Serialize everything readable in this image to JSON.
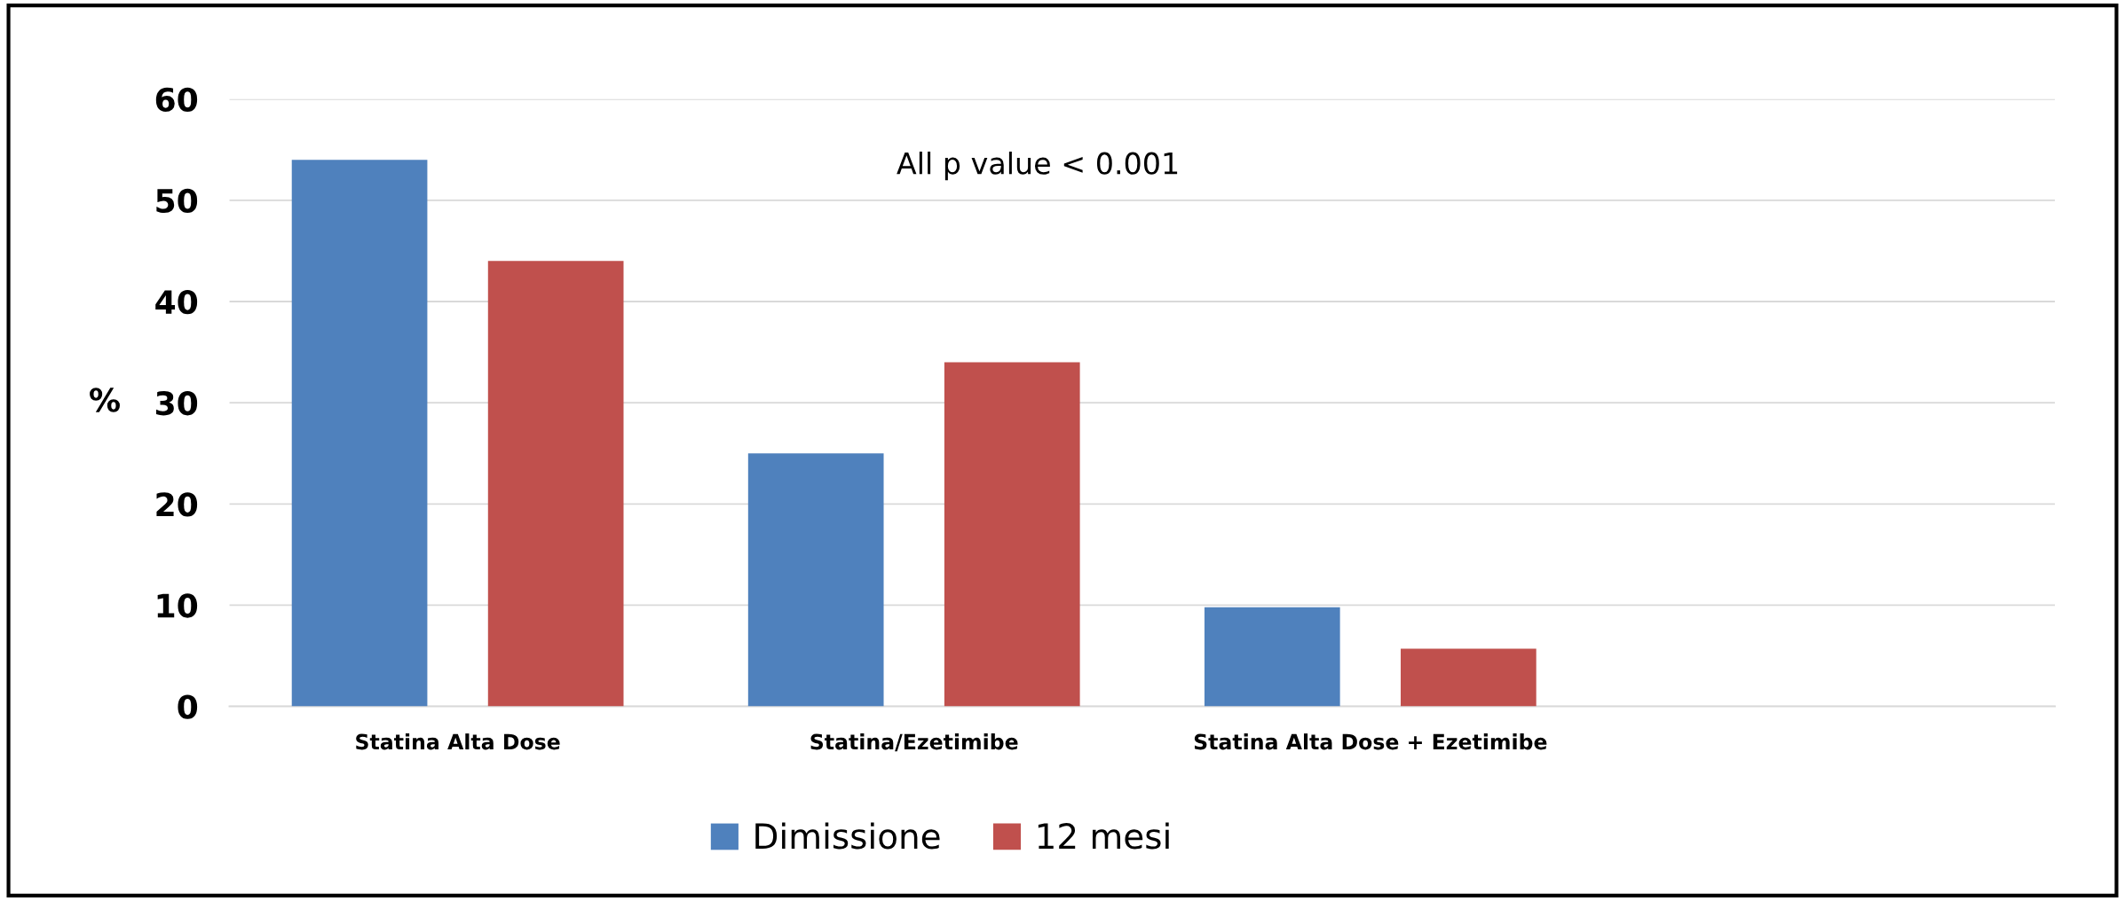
{
  "chart_data": {
    "type": "bar",
    "categories": [
      "Statina Alta Dose",
      "Statina/Ezetimibe",
      "Statina Alta Dose + Ezetimibe",
      null
    ],
    "series": [
      {
        "name": "Dimissione",
        "color": "#4f81bd",
        "values": [
          54,
          25,
          9.8,
          null
        ]
      },
      {
        "name": "12 mesi",
        "color": "#c0504d",
        "values": [
          44,
          34,
          5.7,
          null
        ]
      }
    ],
    "ylabel": "%",
    "ylim": [
      0,
      60
    ],
    "yticks": [
      0,
      10,
      20,
      30,
      40,
      50,
      60
    ],
    "grid": "y",
    "legend": "bottom",
    "annotations": [
      "All p value < 0.001"
    ]
  }
}
